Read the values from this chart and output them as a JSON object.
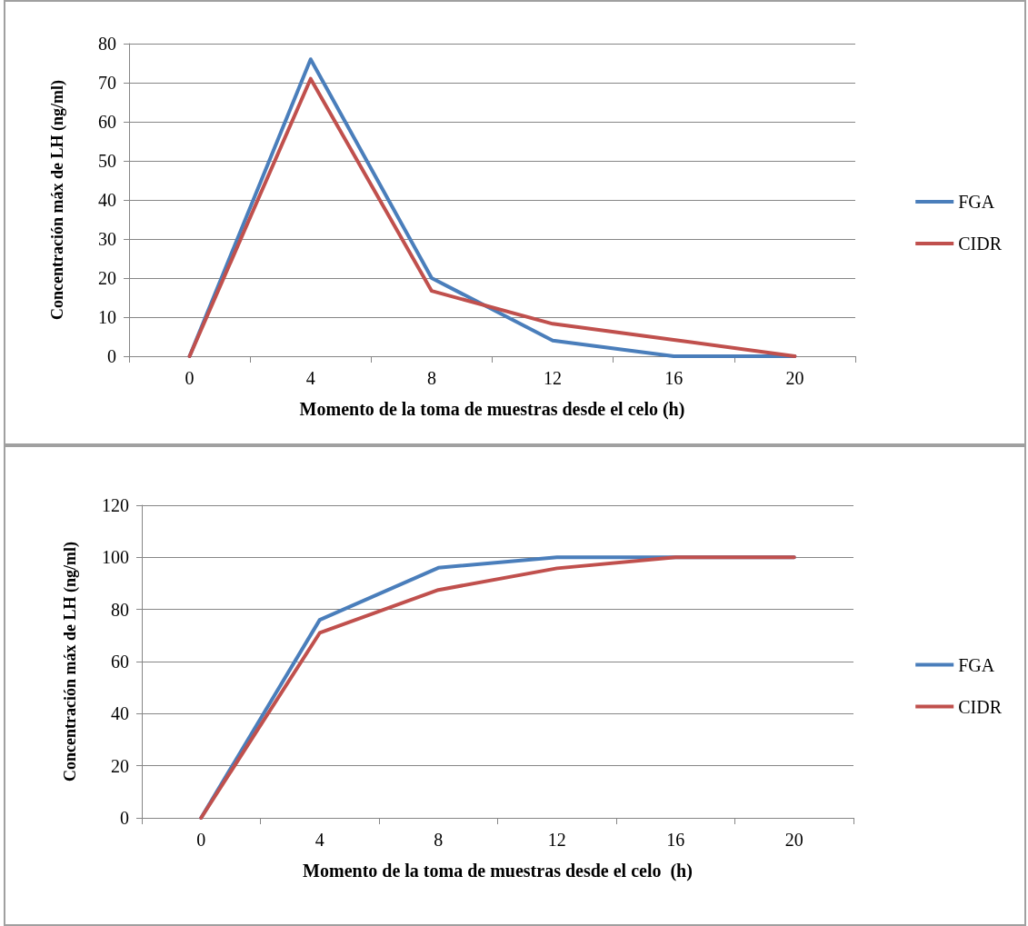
{
  "chart_data": [
    {
      "type": "line",
      "categories": [
        "0",
        "4",
        "8",
        "12",
        "16",
        "20"
      ],
      "xlabel": "Momento de la toma de muestras desde el celo (h)",
      "ylabel": "Concentración máx de LH (ng/ml)",
      "ylim": [
        0,
        80
      ],
      "yticks": [
        0,
        10,
        20,
        30,
        40,
        50,
        60,
        70,
        80
      ],
      "grid": "y",
      "legend": "right",
      "marker": "none",
      "series": [
        {
          "name": "FGA",
          "color": "#4a7ebb",
          "values": [
            0,
            76,
            20,
            4,
            0,
            0
          ]
        },
        {
          "name": "CIDR",
          "color": "#c0504d",
          "values": [
            0,
            71,
            16.7,
            8.3,
            4.2,
            0
          ]
        }
      ]
    },
    {
      "type": "line",
      "categories": [
        "0",
        "4",
        "8",
        "12",
        "16",
        "20"
      ],
      "xlabel": "Momento de la toma de muestras desde el celo  (h)",
      "ylabel": "Concentración máx de LH (ng/ml)",
      "ylim": [
        0,
        120
      ],
      "yticks": [
        0,
        20,
        40,
        60,
        80,
        100,
        120
      ],
      "grid": "y",
      "legend": "right",
      "marker": "none",
      "series": [
        {
          "name": "FGA",
          "color": "#4a7ebb",
          "values": [
            0,
            76,
            96,
            100,
            100,
            100
          ]
        },
        {
          "name": "CIDR",
          "color": "#c0504d",
          "values": [
            0,
            71,
            87.5,
            95.8,
            100,
            100
          ]
        }
      ]
    }
  ]
}
